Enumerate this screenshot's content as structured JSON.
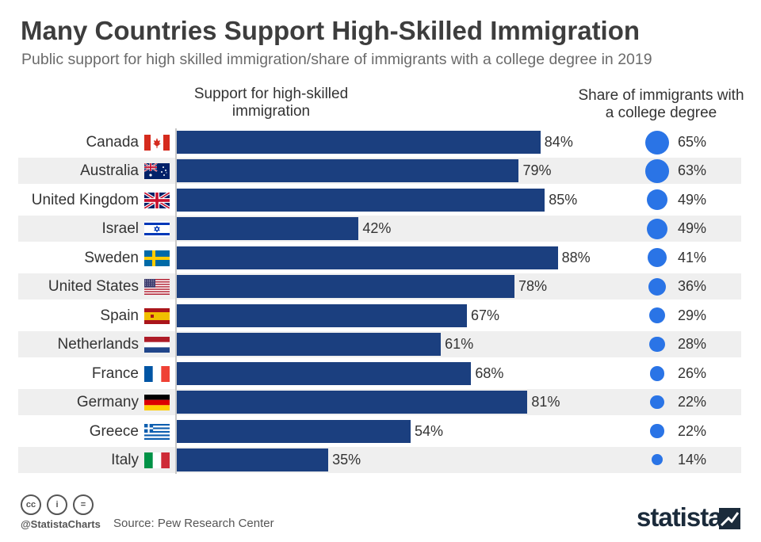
{
  "title": "Many Countries Support High-Skilled Immigration",
  "subtitle": "Public support for high skilled immigration/share of immigrants with a college degree in 2019",
  "column_headers": {
    "support": "Support for high-skilled immigration",
    "share": "Share of immigrants with a college degree"
  },
  "chart_data": {
    "type": "bar",
    "orientation": "horizontal",
    "categories": [
      "Canada",
      "Australia",
      "United Kingdom",
      "Israel",
      "Sweden",
      "United States",
      "Spain",
      "Netherlands",
      "France",
      "Germany",
      "Greece",
      "Italy"
    ],
    "series": [
      {
        "name": "Support for high-skilled immigration",
        "values": [
          84,
          79,
          85,
          42,
          88,
          78,
          67,
          61,
          68,
          81,
          54,
          35
        ],
        "unit": "%"
      },
      {
        "name": "Share of immigrants with a college degree",
        "values": [
          65,
          63,
          49,
          49,
          41,
          36,
          29,
          28,
          26,
          22,
          22,
          14
        ],
        "unit": "%",
        "encoding": "bubble"
      }
    ],
    "bar_labels": [
      "84%",
      "79%",
      "85%",
      "42%",
      "88%",
      "78%",
      "67%",
      "61%",
      "68%",
      "81%",
      "54%",
      "35%"
    ],
    "bubble_labels": [
      "65%",
      "63%",
      "49%",
      "49%",
      "41%",
      "36%",
      "29%",
      "28%",
      "26%",
      "22%",
      "22%",
      "14%"
    ],
    "colors": {
      "bar": "#1b3f7f",
      "bubble": "#2a74e6",
      "row_shade": "#efefef"
    },
    "grid": false,
    "legend": "none"
  },
  "flags": [
    "canada-flag",
    "australia-flag",
    "united-kingdom-flag",
    "israel-flag",
    "sweden-flag",
    "united-states-flag",
    "spain-flag",
    "netherlands-flag",
    "france-flag",
    "germany-flag",
    "greece-flag",
    "italy-flag"
  ],
  "footer": {
    "handle": "@StatistaCharts",
    "source": "Source: Pew Research Center",
    "brand": "statista",
    "license_icons": [
      "creative-commons-icon",
      "attribution-icon",
      "no-derivatives-icon"
    ],
    "license_glyphs": [
      "cc",
      "i",
      "="
    ]
  }
}
